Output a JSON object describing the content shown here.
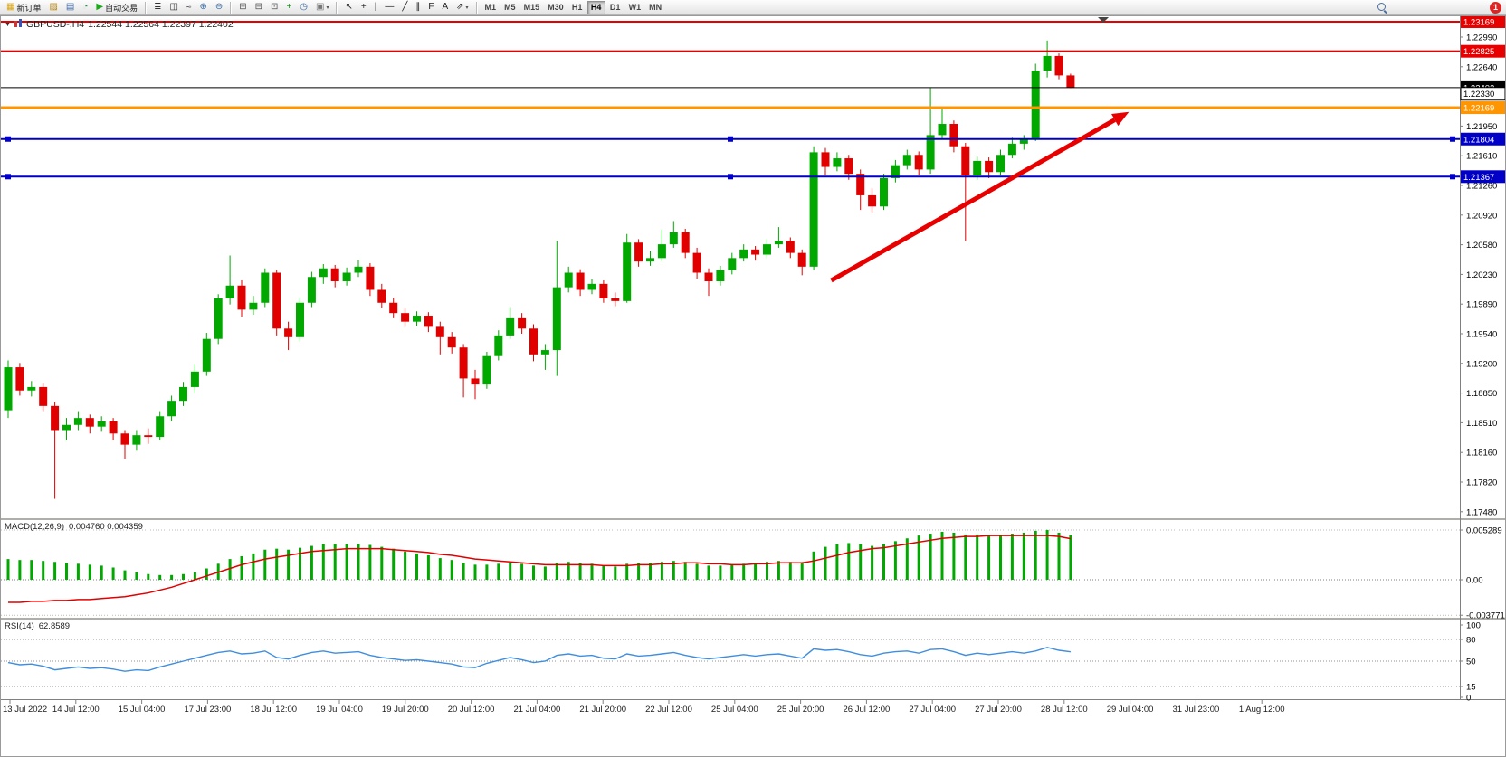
{
  "toolbar": {
    "buttons": [
      {
        "name": "new-order-button",
        "label": "新订单",
        "glyph": "▦",
        "glyph_color": "#d9a413"
      },
      {
        "name": "charts-grid-icon",
        "glyph": "▨",
        "glyph_color": "#b8860b"
      },
      {
        "name": "market-watch-icon",
        "glyph": "▤",
        "glyph_color": "#4169aa"
      },
      {
        "name": "refresh-icon",
        "glyph": "◔",
        "glyph_color": "#2e8b57"
      },
      {
        "name": "auto-trading-button",
        "label": "自动交易",
        "glyph": "▶",
        "glyph_color": "#1daa1d"
      },
      {
        "sep": true
      },
      {
        "name": "bar-chart-icon",
        "glyph": "≣",
        "glyph_color": "#333333"
      },
      {
        "name": "candlestick-chart-icon",
        "glyph": "◫",
        "glyph_color": "#333333"
      },
      {
        "name": "line-chart-icon",
        "glyph": "≈",
        "glyph_color": "#333333"
      },
      {
        "name": "zoom-in-icon",
        "glyph": "⊕",
        "glyph_color": "#3a6ea5"
      },
      {
        "name": "zoom-out-icon",
        "glyph": "⊖",
        "glyph_color": "#3a6ea5"
      },
      {
        "sep": true
      },
      {
        "name": "tile-windows-icon",
        "glyph": "⊞",
        "glyph_color": "#555555"
      },
      {
        "name": "cascade-windows-icon",
        "glyph": "⊟",
        "glyph_color": "#555555"
      },
      {
        "name": "arrange-windows-icon",
        "glyph": "⊡",
        "glyph_color": "#555555"
      },
      {
        "name": "indicators-icon",
        "glyph": "+",
        "glyph_color": "#0a8f0a"
      },
      {
        "name": "periods-icon",
        "glyph": "◷",
        "glyph_color": "#3a6ea5"
      },
      {
        "name": "templates-icon",
        "glyph": "▣",
        "glyph_color": "#777777",
        "caret": true
      },
      {
        "sep": true
      },
      {
        "name": "cursor-icon",
        "glyph": "↖",
        "glyph_color": "#222222"
      },
      {
        "name": "crosshair-icon",
        "glyph": "+",
        "glyph_color": "#222222"
      },
      {
        "name": "vertical-line-icon",
        "glyph": "|",
        "glyph_color": "#222222"
      },
      {
        "name": "horizontal-line-icon",
        "glyph": "—",
        "glyph_color": "#222222"
      },
      {
        "name": "trendline-icon",
        "glyph": "╱",
        "glyph_color": "#222222"
      },
      {
        "name": "channel-icon",
        "glyph": "∥",
        "glyph_color": "#222222"
      },
      {
        "name": "fibonacci-icon",
        "glyph": "F",
        "glyph_color": "#222222"
      },
      {
        "name": "text-icon",
        "glyph": "A",
        "glyph_color": "#222222"
      },
      {
        "name": "arrows-tool-icon",
        "glyph": "⇗",
        "glyph_color": "#222222",
        "caret": true
      },
      {
        "sep": true
      }
    ],
    "timeframes": {
      "items": [
        "M1",
        "M5",
        "M15",
        "M30",
        "H1",
        "H4",
        "D1",
        "W1",
        "MN"
      ],
      "active": "H4"
    },
    "notification_count": "1"
  },
  "chart_data": {
    "type": "candlestick",
    "symbol": "GBPUSD",
    "timeframe": "H4",
    "collapse_glyph": "▼",
    "title_symbol": "GBPUSD-,H4",
    "title_ohlc": "1.22544 1.22564 1.22397 1.22402",
    "colors": {
      "up": "#00a800",
      "down": "#e00000",
      "macd_hist": "#00a800",
      "macd_signal": "#e00000",
      "rsi_line": "#3f8ede",
      "arrow": "#e80000"
    },
    "price_axis_labels": [
      "1.22990",
      "1.22640",
      "1.22330",
      "1.21950",
      "1.21610",
      "1.21260",
      "1.20920",
      "1.20580",
      "1.20230",
      "1.19890",
      "1.19540",
      "1.19200",
      "1.18850",
      "1.18510",
      "1.18160",
      "1.17820",
      "1.17480"
    ],
    "levels": [
      {
        "price": 1.23169,
        "text": "1.23169",
        "color": "#e80000",
        "width": 2
      },
      {
        "price": 1.22825,
        "text": "1.22825",
        "color": "#e80000",
        "width": 2
      },
      {
        "price": 1.22402,
        "text": "1.22402",
        "color": "#000000",
        "width": 1
      },
      {
        "price": 1.2233,
        "text": "1.22330",
        "boxed": true
      },
      {
        "price": 1.22169,
        "text": "1.22169",
        "color": "#ff9500",
        "width": 3
      },
      {
        "price": 1.21804,
        "text": "1.21804",
        "color": "#0000c8",
        "width": 2,
        "handles": true
      },
      {
        "price": 1.21367,
        "text": "1.21367",
        "color": "#0000c8",
        "width": 2,
        "handles": true
      }
    ],
    "annotations": [
      {
        "type": "arrow",
        "x1_bar": 70.5,
        "price1": 1.2016,
        "x2_bar": 96,
        "price2": 1.2212
      },
      {
        "type": "shift_marker",
        "x_bar": 93.8
      }
    ],
    "candles": [
      [
        1.1865,
        1.1923,
        1.1856,
        1.1915
      ],
      [
        1.1915,
        1.192,
        1.1882,
        1.1888
      ],
      [
        1.1888,
        1.1899,
        1.1881,
        1.1892
      ],
      [
        1.1892,
        1.1896,
        1.1864,
        1.187
      ],
      [
        1.187,
        1.1875,
        1.1762,
        1.1842
      ],
      [
        1.1842,
        1.1856,
        1.183,
        1.1848
      ],
      [
        1.1848,
        1.1864,
        1.1842,
        1.1856
      ],
      [
        1.1856,
        1.186,
        1.1838,
        1.1846
      ],
      [
        1.1846,
        1.1858,
        1.184,
        1.1852
      ],
      [
        1.1852,
        1.1856,
        1.183,
        1.1838
      ],
      [
        1.1838,
        1.1842,
        1.1808,
        1.1825
      ],
      [
        1.1825,
        1.1842,
        1.1818,
        1.1836
      ],
      [
        1.1836,
        1.1844,
        1.1826,
        1.1834
      ],
      [
        1.1834,
        1.1864,
        1.183,
        1.1858
      ],
      [
        1.1858,
        1.1882,
        1.1852,
        1.1876
      ],
      [
        1.1876,
        1.1898,
        1.187,
        1.1892
      ],
      [
        1.1892,
        1.1918,
        1.1886,
        1.191
      ],
      [
        1.191,
        1.1955,
        1.1905,
        1.1948
      ],
      [
        1.1948,
        1.2,
        1.1942,
        1.1995
      ],
      [
        1.1995,
        1.2045,
        1.1988,
        1.201
      ],
      [
        1.201,
        1.2016,
        1.1974,
        1.1982
      ],
      [
        1.1982,
        1.1998,
        1.1976,
        1.199
      ],
      [
        1.199,
        1.203,
        1.1985,
        1.2025
      ],
      [
        1.2025,
        1.2028,
        1.1952,
        1.196
      ],
      [
        1.196,
        1.1968,
        1.1935,
        1.195
      ],
      [
        1.195,
        1.1996,
        1.1945,
        1.199
      ],
      [
        1.199,
        1.2026,
        1.1985,
        1.202
      ],
      [
        1.202,
        1.2035,
        1.2012,
        1.203
      ],
      [
        1.203,
        1.2034,
        1.2008,
        1.2015
      ],
      [
        1.2015,
        1.2031,
        1.201,
        1.2025
      ],
      [
        1.2025,
        1.204,
        1.202,
        1.2032
      ],
      [
        1.2032,
        1.2036,
        1.1998,
        1.2005
      ],
      [
        1.2005,
        1.2012,
        1.1984,
        1.199
      ],
      [
        1.199,
        1.1996,
        1.1972,
        1.1978
      ],
      [
        1.1978,
        1.1984,
        1.1962,
        1.1968
      ],
      [
        1.1968,
        1.198,
        1.1963,
        1.1975
      ],
      [
        1.1975,
        1.1979,
        1.1956,
        1.1962
      ],
      [
        1.1962,
        1.1968,
        1.193,
        1.195
      ],
      [
        1.195,
        1.1956,
        1.1931,
        1.1938
      ],
      [
        1.1938,
        1.1942,
        1.188,
        1.1902
      ],
      [
        1.1902,
        1.1912,
        1.1878,
        1.1895
      ],
      [
        1.1895,
        1.1933,
        1.189,
        1.1928
      ],
      [
        1.1928,
        1.1958,
        1.1923,
        1.1952
      ],
      [
        1.1952,
        1.1985,
        1.1948,
        1.1972
      ],
      [
        1.1972,
        1.1978,
        1.1954,
        1.196
      ],
      [
        1.196,
        1.1965,
        1.1922,
        1.193
      ],
      [
        1.193,
        1.1942,
        1.1912,
        1.1935
      ],
      [
        1.1935,
        1.2062,
        1.1905,
        1.2008
      ],
      [
        1.2008,
        1.2032,
        1.2002,
        1.2025
      ],
      [
        1.2025,
        1.2029,
        1.1998,
        1.2005
      ],
      [
        1.2005,
        1.2018,
        1.2,
        1.2012
      ],
      [
        1.2012,
        1.2016,
        1.199,
        1.1995
      ],
      [
        1.1995,
        1.2002,
        1.1986,
        1.1992
      ],
      [
        1.1992,
        1.207,
        1.199,
        1.206
      ],
      [
        1.206,
        1.2064,
        1.2032,
        1.2038
      ],
      [
        1.2038,
        1.205,
        1.2033,
        1.2042
      ],
      [
        1.2042,
        1.2075,
        1.2038,
        1.2058
      ],
      [
        1.2058,
        1.2085,
        1.2054,
        1.2072
      ],
      [
        1.2072,
        1.2076,
        1.2042,
        1.2048
      ],
      [
        1.2048,
        1.2054,
        1.2018,
        1.2025
      ],
      [
        1.2025,
        1.203,
        1.1998,
        1.2015
      ],
      [
        1.2015,
        1.2033,
        1.201,
        1.2028
      ],
      [
        1.2028,
        1.2048,
        1.2023,
        1.2042
      ],
      [
        1.2042,
        1.2058,
        1.2038,
        1.2052
      ],
      [
        1.2052,
        1.2056,
        1.2039,
        1.2046
      ],
      [
        1.2046,
        1.2064,
        1.2042,
        1.2058
      ],
      [
        1.2058,
        1.2078,
        1.2054,
        1.2062
      ],
      [
        1.2062,
        1.2066,
        1.2042,
        1.2048
      ],
      [
        1.2048,
        1.2052,
        1.2022,
        1.2032
      ],
      [
        1.2032,
        1.2172,
        1.2028,
        1.2165
      ],
      [
        1.2165,
        1.217,
        1.2138,
        1.2148
      ],
      [
        1.2148,
        1.2165,
        1.2143,
        1.2158
      ],
      [
        1.2158,
        1.2162,
        1.2133,
        1.214
      ],
      [
        1.214,
        1.2145,
        1.2098,
        1.2115
      ],
      [
        1.2115,
        1.2123,
        1.2095,
        1.2102
      ],
      [
        1.2102,
        1.214,
        1.2098,
        1.2135
      ],
      [
        1.2135,
        1.2156,
        1.213,
        1.215
      ],
      [
        1.215,
        1.2168,
        1.2145,
        1.2162
      ],
      [
        1.2162,
        1.2166,
        1.2138,
        1.2145
      ],
      [
        1.2145,
        1.224,
        1.214,
        1.2185
      ],
      [
        1.2185,
        1.2215,
        1.218,
        1.2198
      ],
      [
        1.2198,
        1.2202,
        1.2165,
        1.2172
      ],
      [
        1.2172,
        1.2176,
        1.2062,
        1.2138
      ],
      [
        1.2138,
        1.216,
        1.2133,
        1.2155
      ],
      [
        1.2155,
        1.2159,
        1.2135,
        1.2142
      ],
      [
        1.2142,
        1.2168,
        1.2138,
        1.2162
      ],
      [
        1.2162,
        1.2182,
        1.2158,
        1.2175
      ],
      [
        1.2175,
        1.2185,
        1.2168,
        1.218
      ],
      [
        1.218,
        1.2268,
        1.2178,
        1.226
      ],
      [
        1.226,
        1.2295,
        1.2252,
        1.2277
      ],
      [
        1.2277,
        1.228,
        1.225,
        1.22544
      ],
      [
        1.22544,
        1.22564,
        1.22397,
        1.22402
      ]
    ],
    "macd": {
      "title": "MACD(12,26,9)",
      "values": "0.004760 0.004359",
      "scale_labels": [
        {
          "value": 0.005289,
          "text": "0.005289"
        },
        {
          "value": 0,
          "text": "0.00"
        },
        {
          "value": -0.003771,
          "text": "-0.003771"
        }
      ],
      "hist": [
        0.0022,
        0.0021,
        0.0021,
        0.002,
        0.0019,
        0.0018,
        0.0017,
        0.0016,
        0.0015,
        0.0013,
        0.001,
        0.0008,
        0.0006,
        0.0005,
        0.0005,
        0.0006,
        0.0008,
        0.0012,
        0.0017,
        0.0022,
        0.0025,
        0.0028,
        0.0032,
        0.0033,
        0.0032,
        0.0034,
        0.0036,
        0.0038,
        0.0038,
        0.0038,
        0.0038,
        0.0037,
        0.0035,
        0.0033,
        0.003,
        0.0028,
        0.0026,
        0.0023,
        0.0021,
        0.0018,
        0.0016,
        0.0016,
        0.0017,
        0.0018,
        0.0017,
        0.0015,
        0.0014,
        0.0018,
        0.0019,
        0.0018,
        0.0017,
        0.0015,
        0.0014,
        0.0017,
        0.0018,
        0.0018,
        0.0019,
        0.002,
        0.0019,
        0.0017,
        0.0015,
        0.0015,
        0.0016,
        0.0017,
        0.0018,
        0.0019,
        0.002,
        0.0019,
        0.0018,
        0.003,
        0.0035,
        0.0038,
        0.0039,
        0.0038,
        0.0036,
        0.0038,
        0.0041,
        0.0044,
        0.0047,
        0.0049,
        0.0051,
        0.005,
        0.0048,
        0.0048,
        0.0047,
        0.0048,
        0.0049,
        0.005,
        0.0052,
        0.0053,
        0.005,
        0.00476
      ],
      "signal": [
        -0.0024,
        -0.0024,
        -0.0023,
        -0.0023,
        -0.0022,
        -0.0022,
        -0.0021,
        -0.0021,
        -0.002,
        -0.0019,
        -0.0018,
        -0.0016,
        -0.0014,
        -0.0011,
        -0.0008,
        -0.0004,
        0.0,
        0.0004,
        0.0008,
        0.0012,
        0.0016,
        0.0019,
        0.0022,
        0.0024,
        0.0026,
        0.0028,
        0.003,
        0.0031,
        0.0032,
        0.0033,
        0.0033,
        0.0033,
        0.0033,
        0.0032,
        0.0031,
        0.003,
        0.0029,
        0.0027,
        0.0026,
        0.0024,
        0.0022,
        0.0021,
        0.002,
        0.0019,
        0.0018,
        0.0017,
        0.0016,
        0.0016,
        0.0016,
        0.0016,
        0.0016,
        0.0015,
        0.0015,
        0.0015,
        0.0016,
        0.0016,
        0.0017,
        0.0017,
        0.0018,
        0.0018,
        0.0017,
        0.0017,
        0.0016,
        0.0016,
        0.0017,
        0.0017,
        0.0018,
        0.0018,
        0.0018,
        0.002,
        0.0023,
        0.0026,
        0.0029,
        0.0031,
        0.0033,
        0.0034,
        0.0036,
        0.0038,
        0.004,
        0.0042,
        0.0044,
        0.0045,
        0.0046,
        0.0046,
        0.0047,
        0.0047,
        0.0047,
        0.0047,
        0.0047,
        0.0047,
        0.0046,
        0.004359
      ]
    },
    "rsi": {
      "title": "RSI(14)",
      "value": "62.8589",
      "levels": [
        80,
        50,
        15
      ],
      "scale_labels": [
        {
          "value": 100,
          "text": "100"
        },
        {
          "value": 80,
          "text": "80"
        },
        {
          "value": 50,
          "text": "50"
        },
        {
          "value": 15,
          "text": "15"
        },
        {
          "value": 0,
          "text": "0"
        }
      ],
      "series": [
        48,
        45,
        46,
        43,
        38,
        40,
        42,
        40,
        41,
        39,
        36,
        38,
        37,
        42,
        46,
        50,
        54,
        58,
        62,
        64,
        60,
        61,
        64,
        55,
        53,
        58,
        62,
        64,
        61,
        62,
        63,
        58,
        55,
        53,
        51,
        52,
        50,
        48,
        46,
        42,
        41,
        47,
        51,
        55,
        52,
        48,
        50,
        58,
        60,
        57,
        58,
        54,
        53,
        60,
        57,
        58,
        60,
        62,
        58,
        55,
        53,
        55,
        57,
        59,
        57,
        59,
        60,
        57,
        54,
        67,
        65,
        66,
        63,
        59,
        57,
        61,
        63,
        64,
        61,
        66,
        67,
        63,
        58,
        61,
        59,
        61,
        63,
        61,
        64,
        69,
        65,
        62.86
      ]
    },
    "time_labels": [
      "13 Jul 2022",
      "14 Jul 12:00",
      "15 Jul 04:00",
      "17 Jul 23:00",
      "18 Jul 12:00",
      "19 Jul 04:00",
      "19 Jul 20:00",
      "20 Jul 12:00",
      "21 Jul 04:00",
      "21 Jul 20:00",
      "22 Jul 12:00",
      "25 Jul 04:00",
      "25 Jul 20:00",
      "26 Jul 12:00",
      "27 Jul 04:00",
      "27 Jul 20:00",
      "28 Jul 12:00",
      "29 Jul 04:00",
      "31 Jul 23:00",
      "1 Aug 12:00"
    ]
  }
}
